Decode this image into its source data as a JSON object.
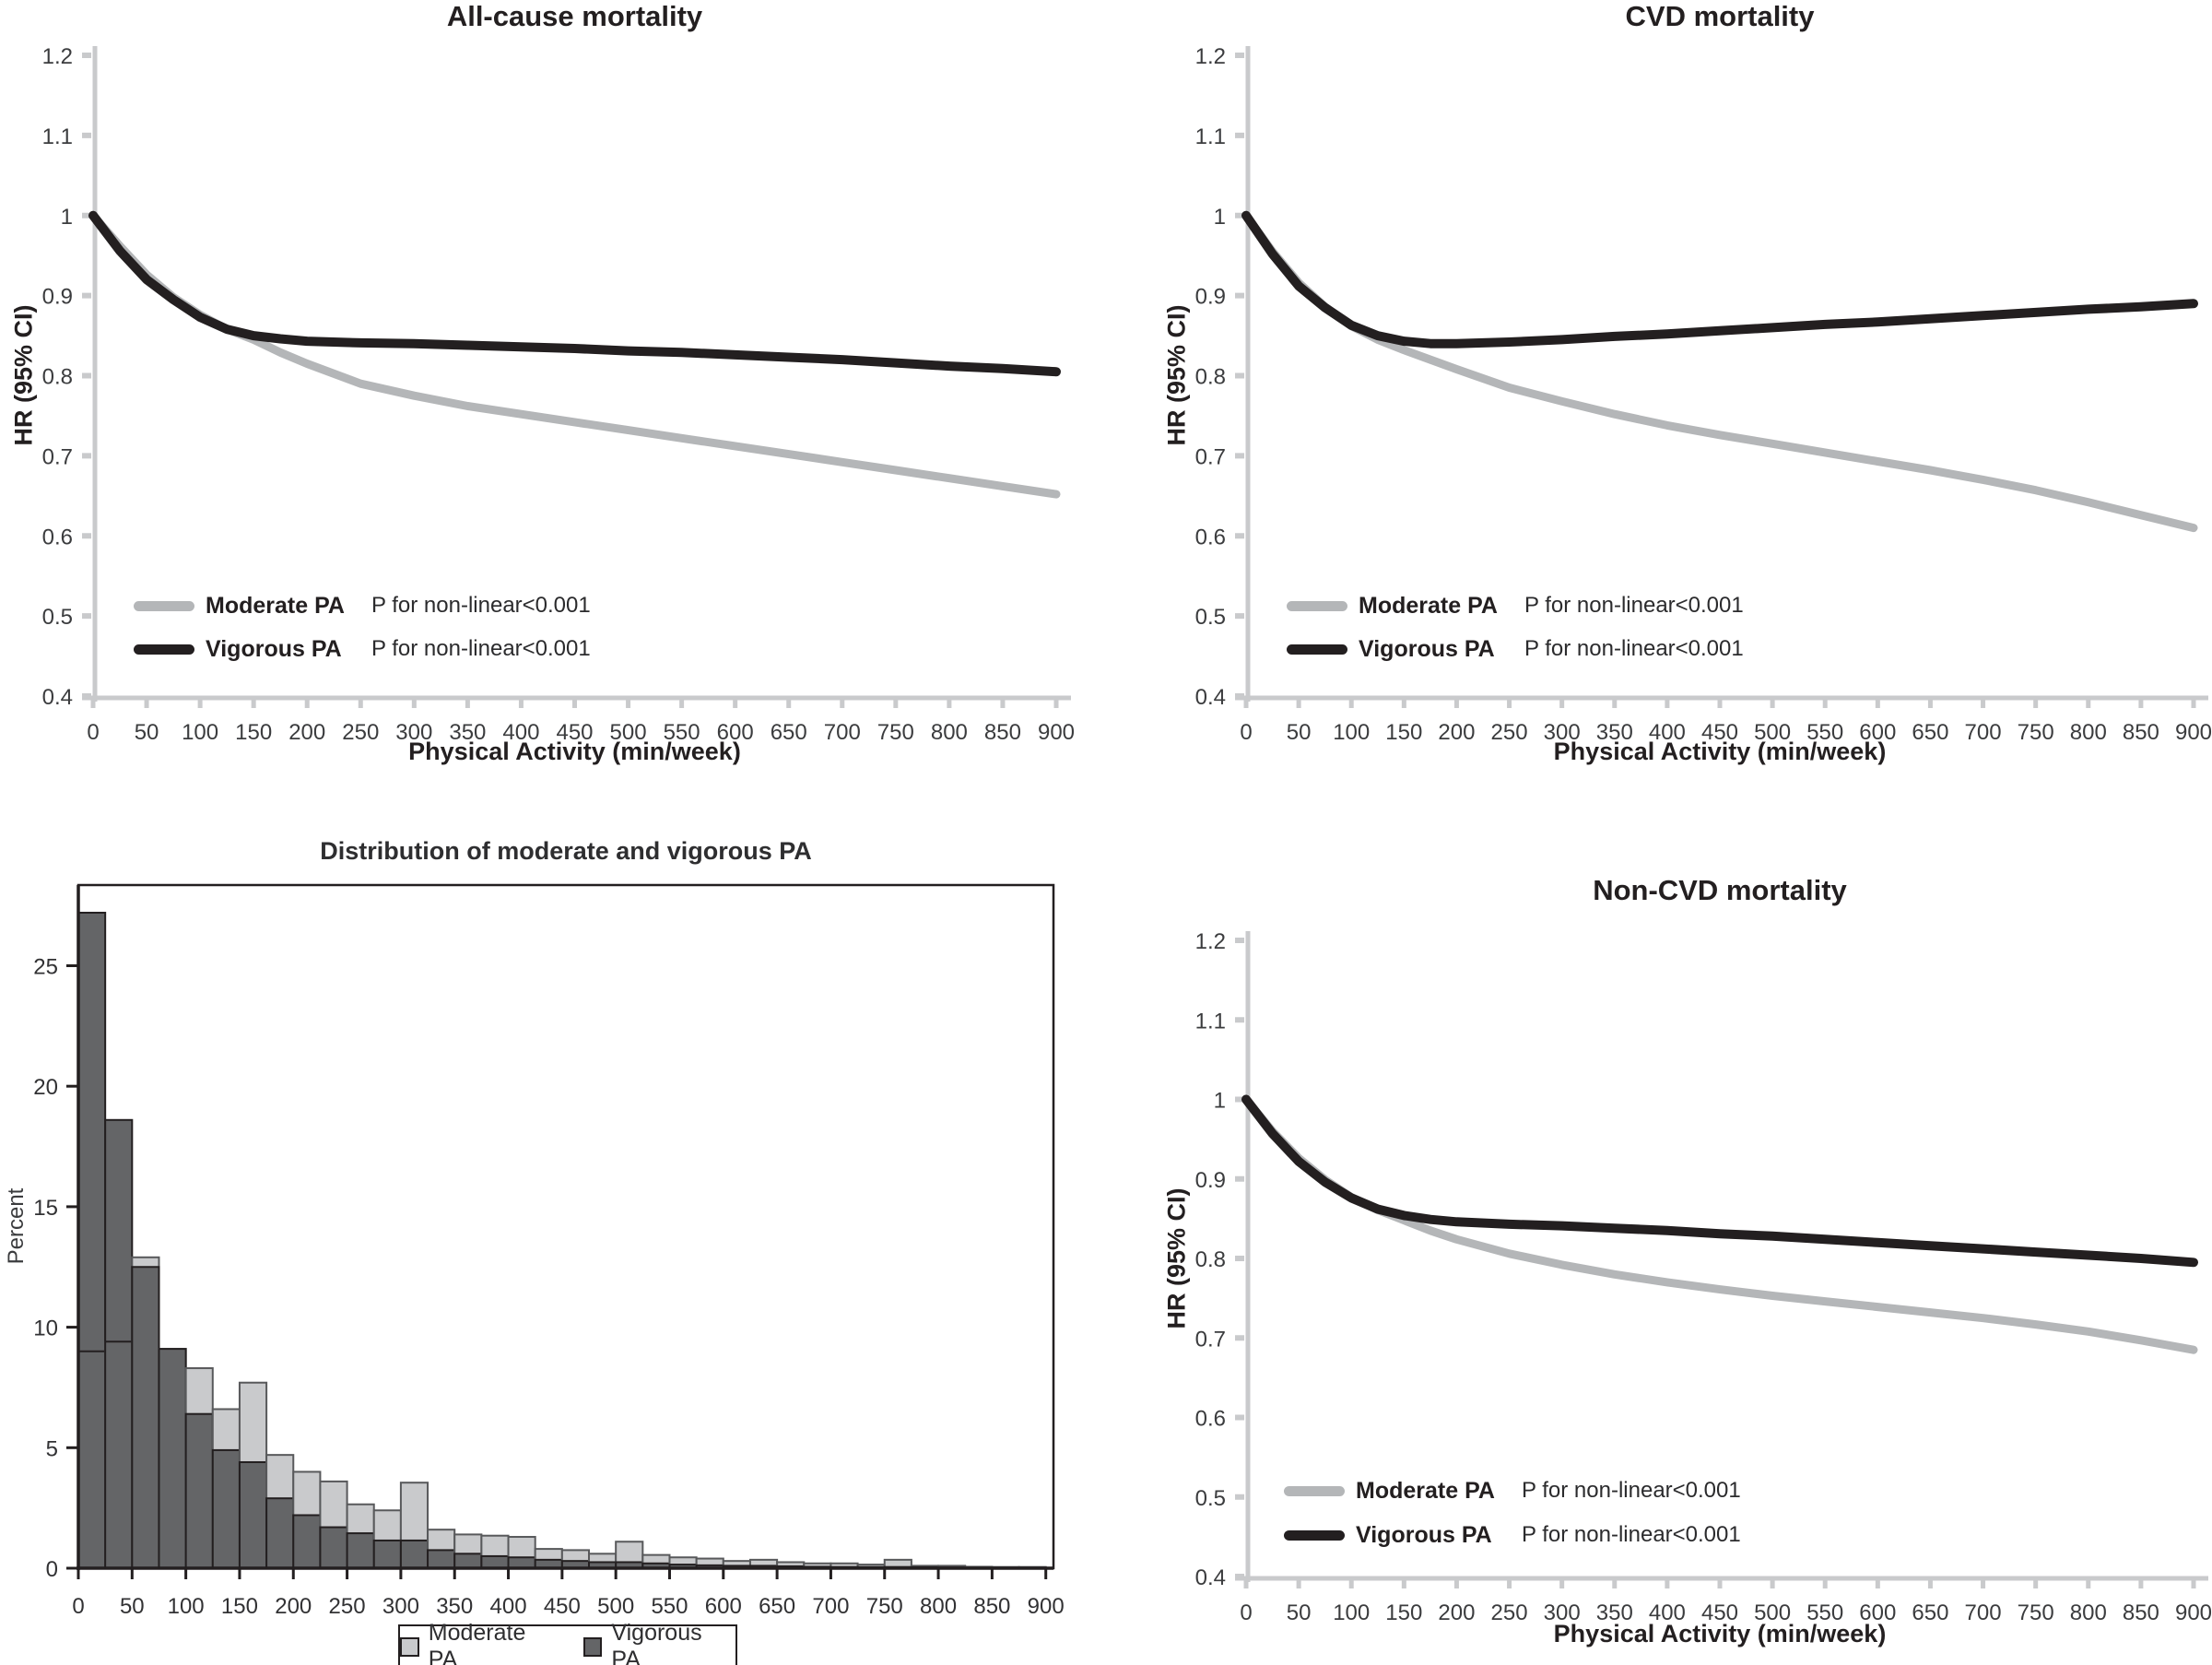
{
  "colors": {
    "moderate_line": "#b4b6b8",
    "vigorous_line": "#231f20",
    "axis_gray": "#c9cacc",
    "tick_text": "#3b3c3e",
    "ink": "#231f20",
    "hist_moderate_fill": "#c9cacc",
    "hist_moderate_stroke": "#58595b",
    "hist_vigorous_fill": "#646567",
    "hist_vigorous_stroke": "#231f20",
    "background": "#ffffff"
  },
  "chart_data": [
    {
      "id": "all_cause",
      "type": "line",
      "title": "All-cause mortality",
      "xlabel": "Physical Activity (min/week)",
      "ylabel": "HR (95% CI)",
      "xlim": [
        0,
        900
      ],
      "ylim": [
        0.4,
        1.2
      ],
      "x_ticks": [
        0,
        50,
        100,
        150,
        200,
        250,
        300,
        350,
        400,
        450,
        500,
        550,
        600,
        650,
        700,
        750,
        800,
        850,
        900
      ],
      "y_tick_labels": [
        "1.2",
        "1.1",
        "1",
        "0.9",
        "0.8",
        "0.7",
        "0.6",
        "0.5",
        "0.4"
      ],
      "legend_position": "bottom-left-inside",
      "grid": false,
      "legend": [
        {
          "name": "Moderate PA",
          "p_label": "P for non-linear<0.001",
          "color": "#b4b6b8"
        },
        {
          "name": "Vigorous PA",
          "p_label": "P for non-linear<0.001",
          "color": "#231f20"
        }
      ],
      "x": [
        0,
        25,
        50,
        75,
        100,
        125,
        150,
        175,
        200,
        250,
        300,
        350,
        400,
        450,
        500,
        550,
        600,
        650,
        700,
        750,
        800,
        850,
        900
      ],
      "series": [
        {
          "name": "Moderate PA",
          "color": "#b4b6b8",
          "y": [
            1.0,
            0.962,
            0.926,
            0.898,
            0.876,
            0.858,
            0.845,
            0.829,
            0.815,
            0.79,
            0.775,
            0.762,
            0.752,
            0.742,
            0.732,
            0.722,
            0.712,
            0.702,
            0.692,
            0.682,
            0.672,
            0.662,
            0.652
          ]
        },
        {
          "name": "Vigorous PA",
          "color": "#231f20",
          "y": [
            1.0,
            0.956,
            0.92,
            0.895,
            0.873,
            0.858,
            0.85,
            0.846,
            0.843,
            0.841,
            0.84,
            0.838,
            0.836,
            0.834,
            0.831,
            0.829,
            0.826,
            0.823,
            0.82,
            0.816,
            0.812,
            0.809,
            0.805
          ]
        }
      ]
    },
    {
      "id": "cvd",
      "type": "line",
      "title": "CVD mortality",
      "xlabel": "Physical Activity (min/week)",
      "ylabel": "HR (95% CI)",
      "xlim": [
        0,
        900
      ],
      "ylim": [
        0.4,
        1.2
      ],
      "x_ticks": [
        0,
        50,
        100,
        150,
        200,
        250,
        300,
        350,
        400,
        450,
        500,
        550,
        600,
        650,
        700,
        750,
        800,
        850,
        900
      ],
      "y_tick_labels": [
        "1.2",
        "1.1",
        "1",
        "0.9",
        "0.8",
        "0.7",
        "0.6",
        "0.5",
        "0.4"
      ],
      "legend_position": "bottom-left-inside",
      "grid": false,
      "legend": [
        {
          "name": "Moderate PA",
          "p_label": "P for non-linear<0.001",
          "color": "#b4b6b8"
        },
        {
          "name": "Vigorous PA",
          "p_label": "P for non-linear<0.001",
          "color": "#231f20"
        }
      ],
      "x": [
        0,
        25,
        50,
        75,
        100,
        125,
        150,
        175,
        200,
        250,
        300,
        350,
        400,
        450,
        500,
        550,
        600,
        650,
        700,
        750,
        800,
        850,
        900
      ],
      "series": [
        {
          "name": "Moderate PA",
          "color": "#b4b6b8",
          "y": [
            1.0,
            0.955,
            0.916,
            0.886,
            0.862,
            0.845,
            0.832,
            0.82,
            0.808,
            0.785,
            0.768,
            0.752,
            0.738,
            0.726,
            0.715,
            0.704,
            0.693,
            0.682,
            0.67,
            0.657,
            0.642,
            0.626,
            0.61
          ]
        },
        {
          "name": "Vigorous PA",
          "color": "#231f20",
          "y": [
            1.0,
            0.952,
            0.912,
            0.885,
            0.863,
            0.85,
            0.843,
            0.84,
            0.84,
            0.842,
            0.845,
            0.849,
            0.852,
            0.856,
            0.86,
            0.864,
            0.867,
            0.871,
            0.875,
            0.879,
            0.883,
            0.886,
            0.89
          ]
        }
      ]
    },
    {
      "id": "pa_distribution",
      "type": "bar",
      "title": "Distribution of moderate and vigorous PA",
      "xlabel": "",
      "ylabel": "Percent",
      "xlim": [
        0,
        900
      ],
      "ylim": [
        0,
        27.5
      ],
      "bin_width": 25,
      "x_ticks": [
        0,
        50,
        100,
        150,
        200,
        250,
        300,
        350,
        400,
        450,
        500,
        550,
        600,
        650,
        700,
        750,
        800,
        850,
        900
      ],
      "y_ticks": [
        0,
        5,
        10,
        15,
        20,
        25
      ],
      "legend_position": "bottom-outside",
      "grid": false,
      "legend": [
        {
          "name": "Moderate PA",
          "color": "#c9cacc"
        },
        {
          "name": "Vigorous PA",
          "color": "#646567"
        }
      ],
      "bin_start": [
        0,
        25,
        50,
        75,
        100,
        125,
        150,
        175,
        200,
        225,
        250,
        275,
        300,
        325,
        350,
        375,
        400,
        425,
        450,
        475,
        500,
        525,
        550,
        575,
        600,
        625,
        650,
        675,
        700,
        725,
        750,
        775,
        800,
        825,
        850,
        875
      ],
      "series": [
        {
          "name": "Moderate PA",
          "values": [
            9.0,
            9.4,
            12.9,
            9.1,
            8.3,
            6.6,
            7.7,
            4.7,
            4.0,
            3.6,
            2.65,
            2.4,
            3.55,
            1.6,
            1.4,
            1.35,
            1.3,
            0.8,
            0.75,
            0.6,
            1.1,
            0.55,
            0.45,
            0.4,
            0.3,
            0.35,
            0.25,
            0.2,
            0.2,
            0.15,
            0.35,
            0.1,
            0.1,
            0.06,
            0.05,
            0.05
          ]
        },
        {
          "name": "Vigorous PA",
          "values": [
            27.2,
            18.6,
            12.5,
            9.1,
            6.4,
            4.9,
            4.4,
            2.9,
            2.2,
            1.7,
            1.45,
            1.15,
            1.15,
            0.75,
            0.6,
            0.5,
            0.45,
            0.35,
            0.3,
            0.25,
            0.25,
            0.2,
            0.15,
            0.12,
            0.1,
            0.1,
            0.08,
            0.06,
            0.05,
            0.05,
            0.05,
            0.04,
            0.03,
            0.02,
            0.02,
            0.02
          ]
        }
      ]
    },
    {
      "id": "non_cvd",
      "type": "line",
      "title": "Non-CVD mortality",
      "xlabel": "Physical Activity (min/week)",
      "ylabel": "HR (95% CI)",
      "xlim": [
        0,
        900
      ],
      "ylim": [
        0.4,
        1.2
      ],
      "x_ticks": [
        0,
        50,
        100,
        150,
        200,
        250,
        300,
        350,
        400,
        450,
        500,
        550,
        600,
        650,
        700,
        750,
        800,
        850,
        900
      ],
      "y_tick_labels": [
        "1.2",
        "1.1",
        "1",
        "0.9",
        "0.8",
        "0.7",
        "0.6",
        "0.5",
        "0.4"
      ],
      "legend_position": "bottom-left-inside",
      "grid": false,
      "legend": [
        {
          "name": "Moderate PA",
          "p_label": "P for non-linear<0.001",
          "color": "#b4b6b8"
        },
        {
          "name": "Vigorous PA",
          "p_label": "P for non-linear<0.001",
          "color": "#231f20"
        }
      ],
      "x": [
        0,
        25,
        50,
        75,
        100,
        125,
        150,
        175,
        200,
        250,
        300,
        350,
        400,
        450,
        500,
        550,
        600,
        650,
        700,
        750,
        800,
        850,
        900
      ],
      "series": [
        {
          "name": "Moderate PA",
          "color": "#b4b6b8",
          "y": [
            1.0,
            0.96,
            0.926,
            0.899,
            0.877,
            0.861,
            0.848,
            0.835,
            0.824,
            0.806,
            0.792,
            0.78,
            0.77,
            0.761,
            0.753,
            0.746,
            0.739,
            0.732,
            0.725,
            0.717,
            0.708,
            0.697,
            0.685
          ]
        },
        {
          "name": "Vigorous PA",
          "color": "#231f20",
          "y": [
            1.0,
            0.957,
            0.922,
            0.896,
            0.876,
            0.862,
            0.854,
            0.849,
            0.846,
            0.843,
            0.841,
            0.838,
            0.835,
            0.831,
            0.828,
            0.824,
            0.82,
            0.816,
            0.812,
            0.808,
            0.804,
            0.8,
            0.795
          ]
        }
      ]
    }
  ]
}
